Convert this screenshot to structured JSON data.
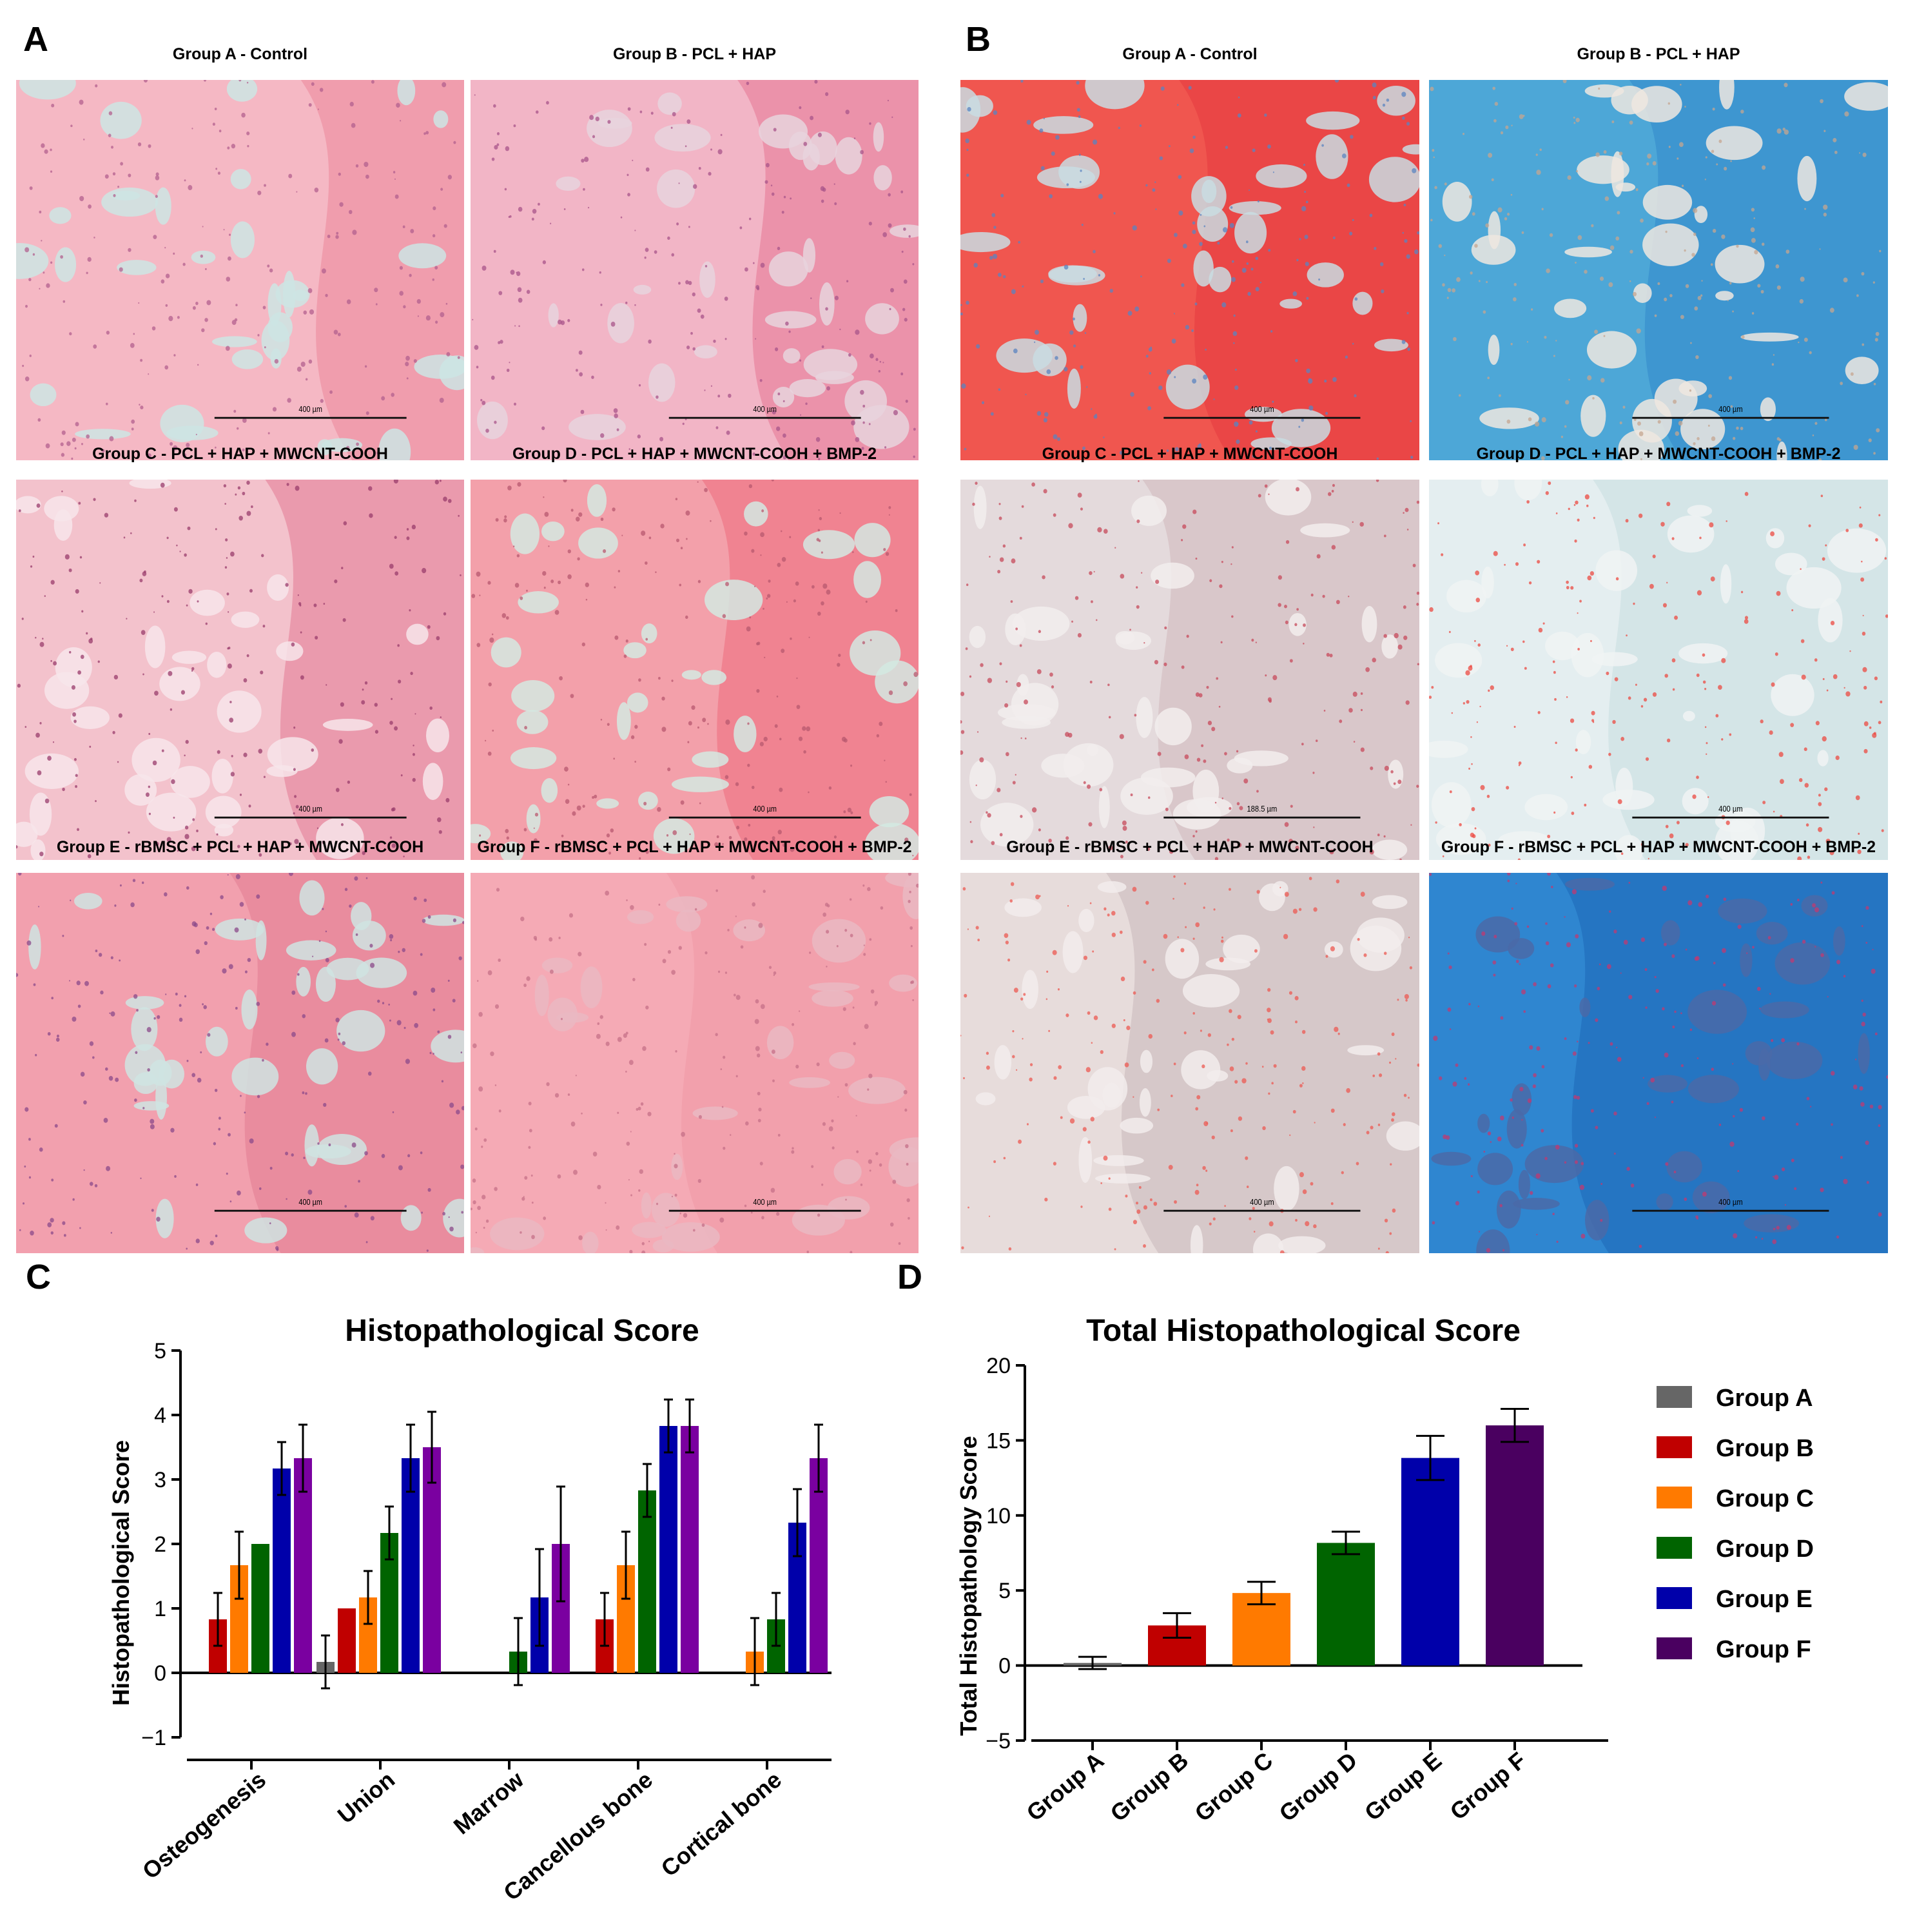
{
  "panels": {
    "a": {
      "letter": "A"
    },
    "b": {
      "letter": "B"
    },
    "c": {
      "letter": "C"
    },
    "d": {
      "letter": "D"
    }
  },
  "micrographs": {
    "he": [
      {
        "title": "Group A - Control",
        "scale": "400 µm",
        "stain": "he-a"
      },
      {
        "title": "Group B - PCL + HAP",
        "scale": "400 µm",
        "stain": "he-b"
      },
      {
        "title": "Group C - PCL + HAP + MWCNT-COOH",
        "scale": "400 µm",
        "stain": "he-c"
      },
      {
        "title": "Group D - PCL + HAP + MWCNT-COOH + BMP-2",
        "scale": "400 µm",
        "stain": "he-d"
      },
      {
        "title": "Group E - rBMSC + PCL + HAP + MWCNT-COOH",
        "scale": "400 µm",
        "stain": "he-e"
      },
      {
        "title": "Group F - rBMSC + PCL + HAP + MWCNT-COOH + BMP-2",
        "scale": "400 µm",
        "stain": "he-f"
      }
    ],
    "trichrome": [
      {
        "title": "Group A - Control",
        "scale": "400 µm",
        "stain": "mt-a"
      },
      {
        "title": "Group B - PCL + HAP",
        "scale": "400 µm",
        "stain": "mt-b"
      },
      {
        "title": "Group C - PCL + HAP + MWCNT-COOH",
        "scale": "188.5 µm",
        "stain": "mt-c"
      },
      {
        "title": "Group D - PCL + HAP + MWCNT-COOH + BMP-2",
        "scale": "400 µm",
        "stain": "mt-d"
      },
      {
        "title": "Group E - rBMSC + PCL + HAP + MWCNT-COOH",
        "scale": "400 µm",
        "stain": "mt-e"
      },
      {
        "title": "Group F - rBMSC + PCL + HAP + MWCNT-COOH + BMP-2",
        "scale": "400 µm",
        "stain": "mt-f"
      }
    ]
  },
  "colors": {
    "Group A": "#666666",
    "Group B": "#c00000",
    "Group C": "#ff7a00",
    "Group D": "#006400",
    "Group E": "#0000aa",
    "Group F": "#7a00a0",
    "Group F total": "#4a0060"
  },
  "chart_data": [
    {
      "type": "bar",
      "title": "Histopathological Score",
      "xlabel": "",
      "ylabel": "Histopathological Score",
      "ylim": [
        -1,
        5
      ],
      "yticks": [
        "−1",
        "0",
        "1",
        "2",
        "3",
        "4",
        "5"
      ],
      "categories": [
        "Osteogenesis",
        "Union",
        "Marrow",
        "Cancellous bone",
        "Cortical bone"
      ],
      "series": [
        {
          "name": "Group A",
          "values": [
            0,
            0.17,
            0,
            0,
            0
          ],
          "errors": [
            0,
            0.41,
            0,
            0,
            0
          ]
        },
        {
          "name": "Group B",
          "values": [
            0.83,
            1.0,
            0,
            0.83,
            0
          ],
          "errors": [
            0.41,
            0,
            0,
            0.41,
            0
          ]
        },
        {
          "name": "Group C",
          "values": [
            1.67,
            1.17,
            0,
            1.67,
            0.33
          ],
          "errors": [
            0.52,
            0.41,
            0,
            0.52,
            0.52
          ]
        },
        {
          "name": "Group D",
          "values": [
            2.0,
            2.17,
            0.33,
            2.83,
            0.83
          ],
          "errors": [
            0,
            0.41,
            0.52,
            0.41,
            0.41
          ]
        },
        {
          "name": "Group E",
          "values": [
            3.17,
            3.33,
            1.17,
            3.83,
            2.33
          ],
          "errors": [
            0.41,
            0.52,
            0.75,
            0.41,
            0.52
          ]
        },
        {
          "name": "Group F",
          "values": [
            3.33,
            3.5,
            2.0,
            3.83,
            3.33
          ],
          "errors": [
            0.52,
            0.55,
            0.89,
            0.41,
            0.52
          ]
        }
      ]
    },
    {
      "type": "bar",
      "title": "Total Histopathological Score",
      "xlabel": "",
      "ylabel": "Total Histopathology Score",
      "ylim": [
        -5,
        20
      ],
      "yticks": [
        "−5",
        "0",
        "5",
        "10",
        "15",
        "20"
      ],
      "categories": [
        "Group A",
        "Group B",
        "Group C",
        "Group D",
        "Group E",
        "Group F"
      ],
      "values": [
        0.17,
        2.67,
        4.83,
        8.17,
        13.83,
        16.0
      ],
      "errors": [
        0.41,
        0.82,
        0.75,
        0.75,
        1.47,
        1.1
      ],
      "legend": [
        "Group A",
        "Group B",
        "Group C",
        "Group D",
        "Group E",
        "Group F"
      ],
      "legend_position": "right"
    }
  ]
}
